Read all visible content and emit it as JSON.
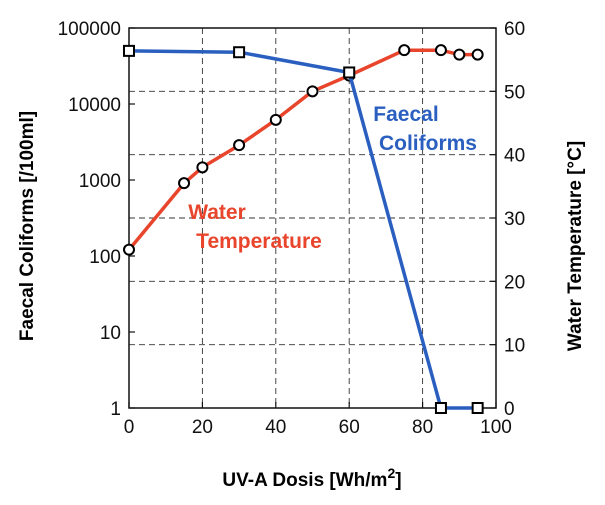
{
  "chart_data": {
    "type": "line",
    "xlabel": "UV-A Dosis [Wh/m",
    "xlabel_sup": "2",
    "xlabel_end": "]",
    "ylabel_left": "Faecal Coliforms [/100ml]",
    "ylabel_right": "Water Temperature [°C]",
    "x_ticks": [
      "0",
      "20",
      "40",
      "60",
      "80",
      "100"
    ],
    "y_left_ticks": [
      "1",
      "10",
      "100",
      "1000",
      "10000",
      "100000"
    ],
    "y_right_ticks": [
      "0",
      "10",
      "20",
      "30",
      "40",
      "50",
      "60"
    ],
    "xlim": [
      0,
      100
    ],
    "ylim_left": [
      1,
      100000
    ],
    "ylim_left_scale": "log",
    "ylim_right": [
      0,
      60
    ],
    "grid": "dashed",
    "series": [
      {
        "name": "Faecal Coliforms",
        "label_lines": [
          "Faecal",
          "Coliforms"
        ],
        "axis": "left",
        "color": "#2a5fc0",
        "marker": "square",
        "x": [
          0,
          30,
          60,
          85,
          95
        ],
        "y": [
          50000,
          48000,
          26000,
          1,
          1
        ]
      },
      {
        "name": "Water Temperature",
        "label_lines": [
          "Water",
          "Temperature"
        ],
        "axis": "right",
        "color": "#e8452c",
        "marker": "circle",
        "x": [
          0,
          15,
          20,
          30,
          40,
          50,
          60,
          75,
          85,
          90,
          95
        ],
        "y": [
          25,
          35.5,
          38,
          41.5,
          45.5,
          50,
          52.5,
          56.5,
          56.5,
          55.8,
          55.8
        ]
      }
    ]
  }
}
